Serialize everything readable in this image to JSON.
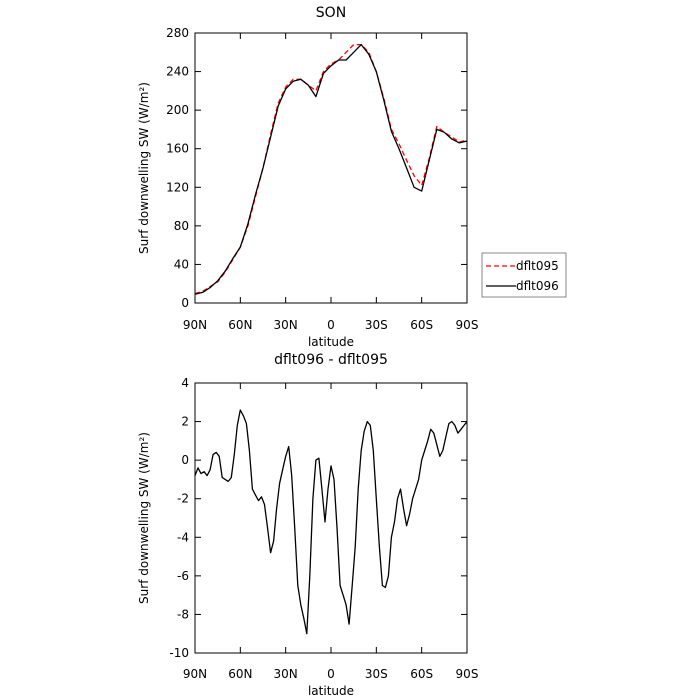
{
  "chart_data": [
    {
      "type": "line",
      "title": "SON",
      "xlabel": "latitude",
      "ylabel": "Surf downwelling SW (W/m²)",
      "xlim": [
        90,
        -90
      ],
      "ylim": [
        0,
        280
      ],
      "x_ticks": [
        {
          "value": 90,
          "label": "90N"
        },
        {
          "value": 60,
          "label": "60N"
        },
        {
          "value": 30,
          "label": "30N"
        },
        {
          "value": 0,
          "label": "0"
        },
        {
          "value": -30,
          "label": "30S"
        },
        {
          "value": -60,
          "label": "60S"
        },
        {
          "value": -90,
          "label": "90S"
        }
      ],
      "y_ticks": [
        0,
        40,
        80,
        120,
        160,
        200,
        240,
        280
      ],
      "legend": "right",
      "series": [
        {
          "name": "dflt095",
          "color": "#ff0000",
          "dash": "dashed",
          "x": [
            90,
            85,
            80,
            75,
            70,
            65,
            60,
            55,
            50,
            45,
            40,
            35,
            30,
            25,
            20,
            15,
            10,
            5,
            0,
            -5,
            -10,
            -15,
            -20,
            -25,
            -30,
            -35,
            -40,
            -45,
            -50,
            -55,
            -60,
            -65,
            -70,
            -75,
            -80,
            -85,
            -90
          ],
          "values": [
            10,
            12,
            17,
            22,
            32,
            45,
            58,
            80,
            110,
            140,
            175,
            207,
            224,
            232,
            232,
            226,
            220,
            240,
            248,
            252,
            260,
            268,
            268,
            260,
            240,
            212,
            180,
            165,
            148,
            132,
            122,
            150,
            183,
            177,
            172,
            167,
            169
          ]
        },
        {
          "name": "dflt096",
          "color": "#000000",
          "dash": "solid",
          "x": [
            90,
            85,
            80,
            75,
            70,
            65,
            60,
            55,
            50,
            45,
            40,
            35,
            30,
            25,
            20,
            15,
            10,
            5,
            0,
            -5,
            -10,
            -15,
            -20,
            -25,
            -30,
            -35,
            -40,
            -45,
            -50,
            -55,
            -60,
            -65,
            -70,
            -75,
            -80,
            -85,
            -90
          ],
          "values": [
            9,
            11,
            16,
            23,
            33,
            46,
            58,
            82,
            112,
            140,
            172,
            204,
            222,
            230,
            232,
            226,
            214,
            238,
            246,
            252,
            252,
            260,
            268,
            258,
            240,
            210,
            178,
            160,
            140,
            120,
            116,
            148,
            180,
            177,
            170,
            166,
            168
          ]
        }
      ]
    },
    {
      "type": "line",
      "title": "dflt096 - dflt095",
      "xlabel": "latitude",
      "ylabel": "Surf downwelling SW (W/m²)",
      "xlim": [
        90,
        -90
      ],
      "ylim": [
        -10,
        4
      ],
      "x_ticks": [
        {
          "value": 90,
          "label": "90N"
        },
        {
          "value": 60,
          "label": "60N"
        },
        {
          "value": 30,
          "label": "30N"
        },
        {
          "value": 0,
          "label": "0"
        },
        {
          "value": -30,
          "label": "30S"
        },
        {
          "value": -60,
          "label": "60S"
        },
        {
          "value": -90,
          "label": "90S"
        }
      ],
      "y_ticks": [
        -10,
        -8,
        -6,
        -4,
        -2,
        0,
        2,
        4
      ],
      "series": [
        {
          "color": "#000000",
          "dash": "solid",
          "x": [
            90,
            88,
            86,
            84,
            82,
            80,
            78,
            76,
            74,
            72,
            70,
            68,
            66,
            64,
            62,
            60,
            58,
            56,
            54,
            52,
            50,
            48,
            46,
            44,
            42,
            40,
            38,
            36,
            34,
            32,
            30,
            28,
            26,
            24,
            22,
            20,
            18,
            16,
            14,
            12,
            10,
            8,
            6,
            4,
            2,
            0,
            -2,
            -4,
            -6,
            -8,
            -10,
            -12,
            -14,
            -16,
            -18,
            -20,
            -22,
            -24,
            -26,
            -28,
            -30,
            -32,
            -34,
            -36,
            -38,
            -40,
            -42,
            -44,
            -46,
            -48,
            -50,
            -52,
            -54,
            -56,
            -58,
            -60,
            -62,
            -64,
            -66,
            -68,
            -70,
            -72,
            -74,
            -76,
            -78,
            -80,
            -82,
            -84,
            -86,
            -88,
            -90
          ],
          "values": [
            -0.8,
            -0.4,
            -0.7,
            -0.6,
            -0.8,
            -0.5,
            0.3,
            0.4,
            0.2,
            -0.9,
            -1.0,
            -1.1,
            -0.9,
            0.3,
            1.8,
            2.6,
            2.3,
            1.9,
            0.5,
            -1.5,
            -1.8,
            -2.1,
            -1.9,
            -2.3,
            -3.5,
            -4.8,
            -4.2,
            -2.5,
            -1.2,
            -0.5,
            0.2,
            0.7,
            -0.8,
            -3.5,
            -6.5,
            -7.5,
            -8.2,
            -9.0,
            -6.0,
            -2.0,
            0.0,
            0.1,
            -1.5,
            -3.2,
            -1.5,
            -0.3,
            -1.0,
            -3.5,
            -6.5,
            -7.0,
            -7.5,
            -8.5,
            -6.5,
            -4.5,
            -1.5,
            0.5,
            1.5,
            2.0,
            1.8,
            0.5,
            -2.0,
            -4.5,
            -6.5,
            -6.6,
            -6.0,
            -4.0,
            -3.2,
            -2.0,
            -1.5,
            -2.5,
            -3.4,
            -2.8,
            -2.0,
            -1.5,
            -1.0,
            0.0,
            0.5,
            1.0,
            1.6,
            1.4,
            0.8,
            0.2,
            0.5,
            1.2,
            1.9,
            2.0,
            1.8,
            1.4,
            1.6,
            1.8,
            2.0
          ]
        }
      ]
    }
  ]
}
